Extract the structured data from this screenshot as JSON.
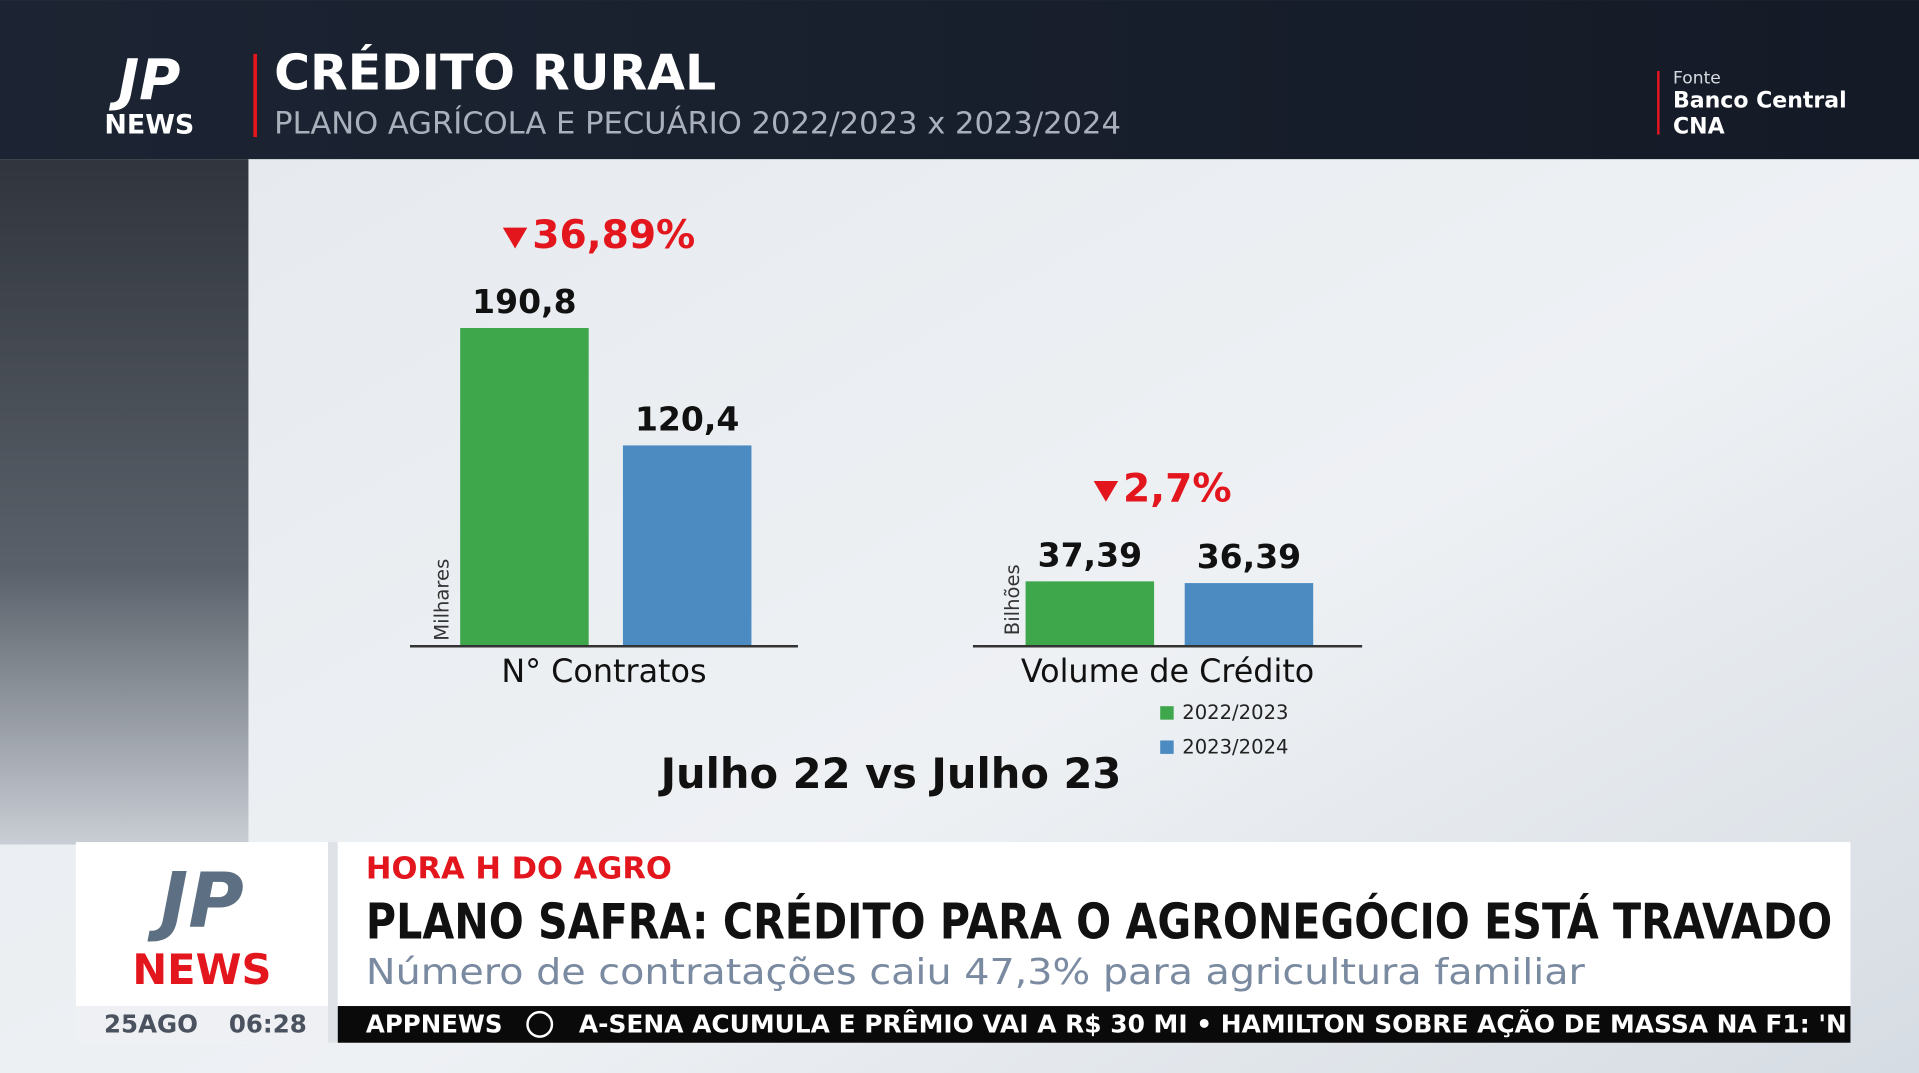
{
  "header": {
    "logo": {
      "mark": "JP",
      "name": "NEWS"
    },
    "title": "CRÉDITO RURAL",
    "subtitle": "PLANO AGRÍCOLA E PECUÁRIO 2022/2023 x 2023/2024",
    "source_label": "Fonte",
    "sources": [
      "Banco Central",
      "CNA"
    ]
  },
  "chart_data": [
    {
      "type": "bar",
      "y_label": "Milhares",
      "categories": [
        "N° Contratos"
      ],
      "annotation": "36,89%",
      "annotation_color": "#e3161d",
      "series": [
        {
          "color": "#3ea74b",
          "values": [
            190.8
          ],
          "value_labels": [
            "190,8"
          ]
        },
        {
          "color": "#4b8bc1",
          "values": [
            120.4
          ],
          "value_labels": [
            "120,4"
          ]
        }
      ]
    },
    {
      "type": "bar",
      "y_label": "Bilhões",
      "categories": [
        "Volume de Crédito"
      ],
      "annotation": "2,7%",
      "annotation_color": "#e3161d",
      "legend": "bottom",
      "series": [
        {
          "name": "2022/2023",
          "color": "#3ea74b",
          "values": [
            37.39
          ],
          "value_labels": [
            "37,39"
          ]
        },
        {
          "name": "2023/2024",
          "color": "#4b8bc1",
          "values": [
            36.39
          ],
          "value_labels": [
            "36,39"
          ]
        }
      ]
    }
  ],
  "comparison": "Julho 22 vs Julho 23",
  "lower_third": {
    "date": "25AGO",
    "time": "06:28",
    "tag": "HORA H DO AGRO",
    "headline": "PLANO SAFRA: CRÉDITO PARA O AGRONEGÓCIO ESTÁ TRAVADO",
    "subheadline": "Número de contratações caiu 47,3% para agricultura familiar",
    "ticker_brand": "APPNEWS",
    "ticker": "A-SENA ACUMULA E PRÊMIO VAI A R$ 30 MI • HAMILTON SOBRE AÇÃO DE MASSA NA F1: 'N"
  }
}
